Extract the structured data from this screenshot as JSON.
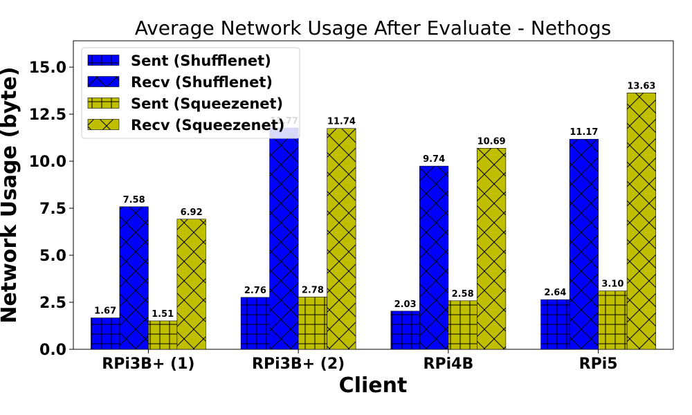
{
  "chart_data": {
    "type": "bar",
    "title": "Average Network Usage After Evaluate - Nethogs",
    "xlabel": "Client",
    "ylabel": "Network Usage (byte)",
    "categories": [
      "RPi3B+ (1)",
      "RPi3B+ (2)",
      "RPi4B",
      "RPi5"
    ],
    "series": [
      {
        "name": "Sent (Shufflenet)",
        "values": [
          1.67,
          2.76,
          2.03,
          2.64
        ],
        "labels": [
          "1.67",
          "2.76",
          "2.03",
          "2.64"
        ],
        "color": "#0000ff",
        "hatch": "grid"
      },
      {
        "name": "Recv (Shufflenet)",
        "values": [
          7.58,
          11.77,
          9.74,
          11.17
        ],
        "labels": [
          "7.58",
          "11.77",
          "9.74",
          "11.17"
        ],
        "color": "#0000ff",
        "hatch": "cross"
      },
      {
        "name": "Sent (Squeezenet)",
        "values": [
          1.51,
          2.78,
          2.58,
          3.1
        ],
        "labels": [
          "1.51",
          "2.78",
          "2.58",
          "3.10"
        ],
        "color": "#bfbf00",
        "hatch": "grid"
      },
      {
        "name": "Recv (Squeezenet)",
        "values": [
          6.92,
          11.74,
          10.69,
          13.63
        ],
        "labels": [
          "6.92",
          "11.74",
          "10.69",
          "13.63"
        ],
        "color": "#bfbf00",
        "hatch": "cross"
      }
    ],
    "ylim": [
      0,
      16.4
    ],
    "yticks": [
      "0.0",
      "2.5",
      "5.0",
      "7.5",
      "10.0",
      "12.5",
      "15.0"
    ],
    "grid": false,
    "legend": "top-left"
  }
}
